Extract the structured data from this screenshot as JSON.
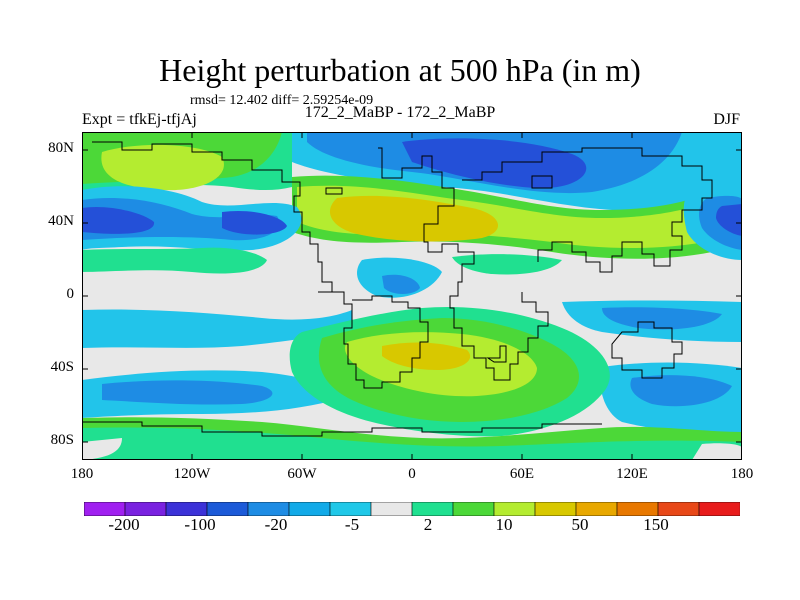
{
  "header": {
    "title": "Height perturbation at 500 hPa (in m)",
    "stats": "rmsd= 12.402  diff= 2.59254e-09",
    "expt": "Expt = tfkEj-tfjAj",
    "subtitle": "172_2_MaBP - 172_2_MaBP",
    "season": "DJF"
  },
  "axes": {
    "lat_labels": [
      "80N",
      "40N",
      "0",
      "40S",
      "80S"
    ],
    "lon_labels": [
      "180",
      "120W",
      "60W",
      "0",
      "60E",
      "120E",
      "180"
    ]
  },
  "colorbar": {
    "colors": [
      "#a020f0",
      "#7a22e0",
      "#3c32d8",
      "#1c5ad8",
      "#1e8ce4",
      "#12aae8",
      "#20c8e8",
      "#e8e8e8",
      "#20e090",
      "#4cd838",
      "#b4ec30",
      "#d8c800",
      "#e8a800",
      "#e87800",
      "#e84818",
      "#e81c1c"
    ],
    "labels": [
      "-200",
      "-100",
      "-20",
      "-5",
      "2",
      "10",
      "50",
      "150"
    ]
  },
  "map_colors": {
    "background": "#e8e8e8",
    "deep_blue": "#2450d8",
    "blue": "#1e8ce4",
    "light_blue": "#22c4ea",
    "teal": "#20e090",
    "green": "#4cd838",
    "yellow_green": "#b4ec30",
    "olive": "#d8c800",
    "coast": "#000000"
  }
}
